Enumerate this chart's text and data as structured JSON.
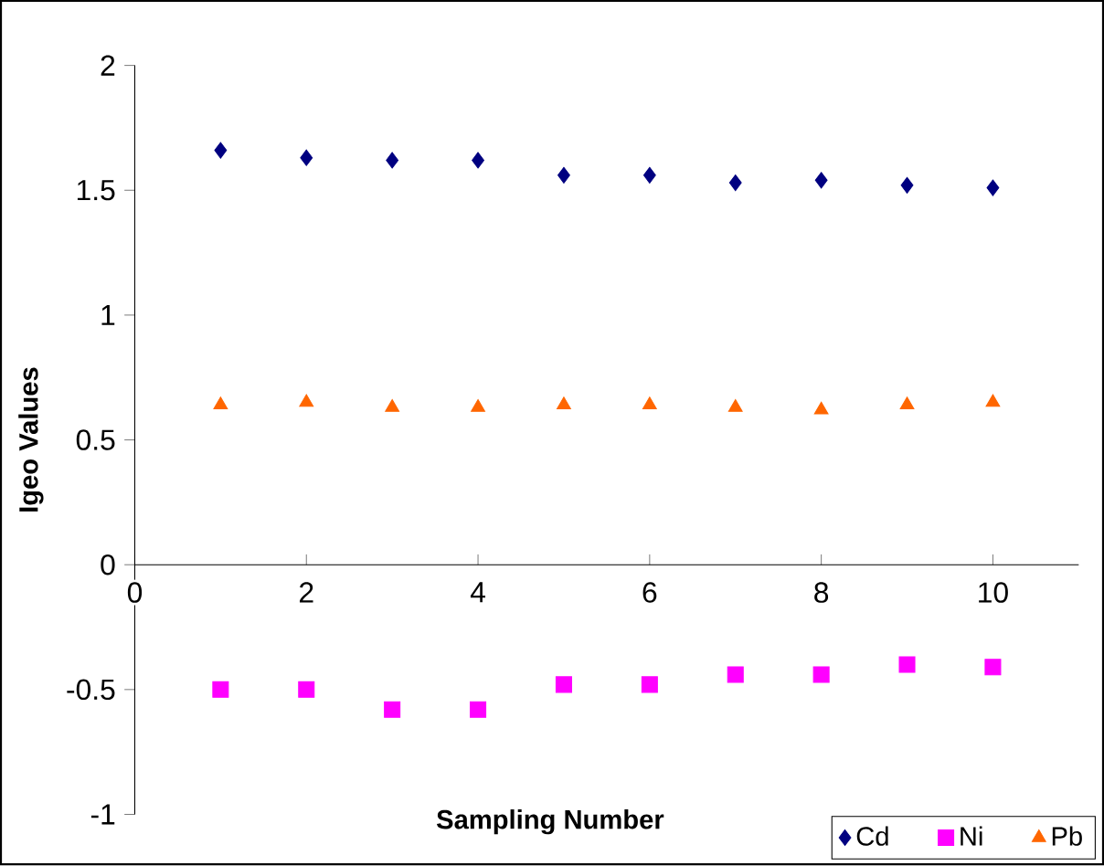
{
  "chart_data": {
    "type": "scatter",
    "xlabel": "Sampling Number",
    "ylabel": "Igeo Values",
    "x": [
      1,
      2,
      3,
      4,
      5,
      6,
      7,
      8,
      9,
      10
    ],
    "series": [
      {
        "name": "Cd",
        "color": "#000080",
        "marker": "diamond",
        "values": [
          1.66,
          1.63,
          1.62,
          1.62,
          1.56,
          1.56,
          1.53,
          1.54,
          1.52,
          1.51
        ]
      },
      {
        "name": "Ni",
        "color": "#ff00ff",
        "marker": "square",
        "values": [
          -0.5,
          -0.5,
          -0.58,
          -0.58,
          -0.48,
          -0.48,
          -0.44,
          -0.44,
          -0.4,
          -0.41
        ]
      },
      {
        "name": "Pb",
        "color": "#ff6600",
        "marker": "triangle",
        "values": [
          0.64,
          0.65,
          0.63,
          0.63,
          0.64,
          0.64,
          0.63,
          0.62,
          0.64,
          0.65
        ]
      }
    ],
    "xlim": [
      0,
      11
    ],
    "xticks": [
      0,
      2,
      4,
      6,
      8,
      10
    ],
    "ylim": [
      -1,
      2
    ],
    "yticks": [
      -1,
      -0.5,
      0,
      0.5,
      1,
      1.5,
      2
    ],
    "legend": "bottom right"
  }
}
